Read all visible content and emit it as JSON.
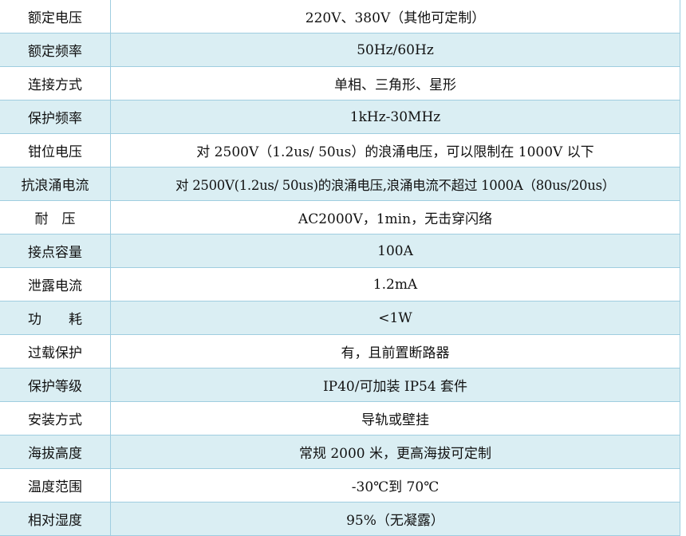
{
  "rows": [
    {
      "label": "额定电压",
      "value": "220V、380V（其他可定制）"
    },
    {
      "label": "额定频率",
      "value": "50Hz/60Hz"
    },
    {
      "label": "连接方式",
      "value": "单相、三角形、星形"
    },
    {
      "label": "保护频率",
      "value": "1kHz-30MHz"
    },
    {
      "label": "钳位电压",
      "value": "对 2500V（1.2us/ 50us）的浪涌电压，可以限制在 1000V 以下"
    },
    {
      "label": "抗浪涌电流",
      "value": "对 2500V(1.2us/ 50us)的浪涌电压,浪涌电流不超过 1000A（80us/20us）"
    },
    {
      "label": "耐　压",
      "value": "AC2000V，1min，无击穿闪络"
    },
    {
      "label": "接点容量",
      "value": "100A"
    },
    {
      "label": "泄露电流",
      "value": "1.2mA"
    },
    {
      "label": "功　　耗",
      "value": "<1W"
    },
    {
      "label": "过载保护",
      "value": "有，且前置断路器"
    },
    {
      "label": "保护等级",
      "value": "IP40/可加装 IP54 套件"
    },
    {
      "label": "安装方式",
      "value": "导轨或壁挂"
    },
    {
      "label": "海拔高度",
      "value": "常规 2000 米，更高海拔可定制"
    },
    {
      "label": "温度范围",
      "value": "-30℃到 70℃"
    },
    {
      "label": "相对湿度",
      "value": "95%（无凝露）"
    }
  ]
}
